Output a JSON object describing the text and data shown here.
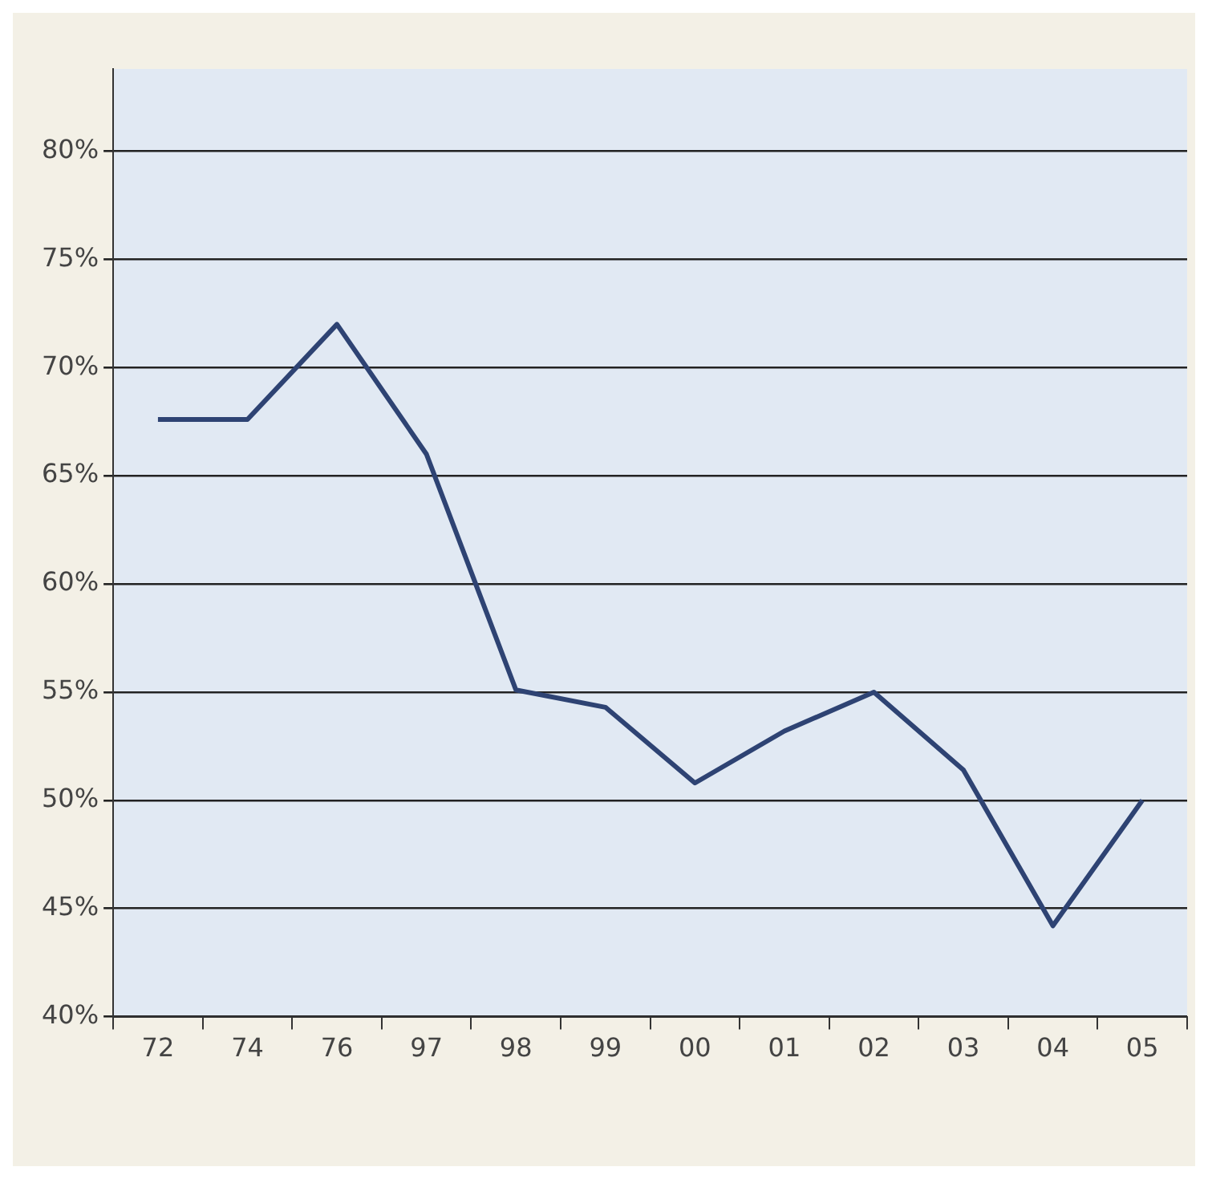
{
  "chart_data": {
    "type": "line",
    "categories": [
      "72",
      "74",
      "76",
      "97",
      "98",
      "99",
      "00",
      "01",
      "02",
      "03",
      "04",
      "05"
    ],
    "series": [
      {
        "color": "#2e4373",
        "values": [
          67.6,
          67.6,
          72,
          66,
          55.1,
          54.3,
          50.8,
          53.2,
          55,
          51.4,
          44.2,
          50
        ]
      }
    ],
    "ylim": [
      40,
      83.8
    ],
    "yticks": [
      {
        "value": 40,
        "label": "40%"
      },
      {
        "value": 45,
        "label": "45%"
      },
      {
        "value": 50,
        "label": "50%"
      },
      {
        "value": 55,
        "label": "55%"
      },
      {
        "value": 60,
        "label": "60%"
      },
      {
        "value": 65,
        "label": "65%"
      },
      {
        "value": 70,
        "label": "70%"
      },
      {
        "value": 75,
        "label": "75%"
      },
      {
        "value": 80,
        "label": "80%"
      }
    ],
    "grid": "y",
    "legend": false,
    "marker": "none",
    "line_style": "solid"
  }
}
